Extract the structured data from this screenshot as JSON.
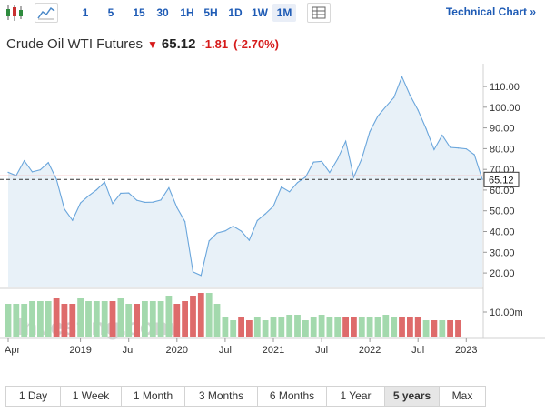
{
  "toolbar": {
    "candlestick_icon": "candlestick-icon",
    "area_icon": "area-chart-icon",
    "intervals": [
      "1",
      "5",
      "15",
      "30",
      "1H",
      "5H",
      "1D",
      "1W",
      "1M"
    ],
    "active_interval": "1M",
    "settings_icon": "table-icon",
    "technical_chart_label": "Technical Chart »"
  },
  "instrument": {
    "name": "Crude Oil WTI Futures",
    "direction_icon": "down-arrow-icon",
    "last": "65.12",
    "change": "-1.81",
    "change_pct": "(-2.70%)"
  },
  "colors": {
    "price_line": "#6aa6dc",
    "price_fill": "#e4eef7",
    "volume_up": "#a3d9ad",
    "volume_down": "#de6b6b",
    "negative": "#d61a1a",
    "link": "#1e5bb5"
  },
  "watermark": "Investing.com",
  "chart_data": {
    "type": "area",
    "title": "Crude Oil WTI Futures",
    "x": [
      "2018-04",
      "2018-05",
      "2018-06",
      "2018-07",
      "2018-08",
      "2018-09",
      "2018-10",
      "2018-11",
      "2018-12",
      "2019-01",
      "2019-02",
      "2019-03",
      "2019-04",
      "2019-05",
      "2019-06",
      "2019-07",
      "2019-08",
      "2019-09",
      "2019-10",
      "2019-11",
      "2019-12",
      "2020-01",
      "2020-02",
      "2020-03",
      "2020-04",
      "2020-05",
      "2020-06",
      "2020-07",
      "2020-08",
      "2020-09",
      "2020-10",
      "2020-11",
      "2020-12",
      "2021-01",
      "2021-02",
      "2021-03",
      "2021-04",
      "2021-05",
      "2021-06",
      "2021-07",
      "2021-08",
      "2021-09",
      "2021-10",
      "2021-11",
      "2021-12",
      "2022-01",
      "2022-02",
      "2022-03",
      "2022-04",
      "2022-05",
      "2022-06",
      "2022-07",
      "2022-08",
      "2022-09",
      "2022-10",
      "2022-11",
      "2022-12",
      "2023-01",
      "2023-02",
      "2023-03"
    ],
    "series": [
      {
        "values": [
          68.6,
          67.0,
          74.2,
          68.8,
          69.8,
          73.3,
          65.3,
          50.9,
          45.4,
          53.8,
          57.2,
          60.1,
          63.9,
          53.5,
          58.5,
          58.6,
          55.1,
          54.1,
          54.2,
          55.2,
          61.1,
          51.6,
          44.8,
          20.5,
          18.8,
          35.5,
          39.3,
          40.3,
          42.6,
          40.2,
          35.8,
          45.3,
          48.5,
          52.2,
          61.5,
          59.2,
          63.6,
          66.3,
          73.5,
          73.9,
          68.5,
          75.0,
          83.6,
          66.2,
          75.2,
          88.2,
          95.7,
          100.3,
          104.7,
          114.7,
          105.8,
          98.6,
          89.6,
          79.5,
          86.5,
          80.6,
          80.3,
          79.9,
          77.1,
          65.1
        ]
      }
    ],
    "volume": {
      "label": "10.00m",
      "values": [
        12,
        12,
        12,
        13,
        13,
        13,
        14,
        12,
        12,
        14,
        13,
        13,
        13,
        13,
        14,
        12,
        12,
        13,
        13,
        13,
        15,
        12,
        13,
        15,
        16,
        16,
        12,
        7,
        6,
        7,
        6,
        7,
        6,
        7,
        7,
        8,
        8,
        6,
        7,
        8,
        7,
        7,
        7,
        7,
        7,
        7,
        7,
        8,
        7,
        7,
        7,
        7,
        6,
        6,
        6,
        6,
        6,
        0,
        0,
        0
      ],
      "down": [
        false,
        false,
        false,
        false,
        false,
        false,
        true,
        true,
        true,
        false,
        false,
        false,
        false,
        true,
        false,
        false,
        true,
        false,
        false,
        false,
        false,
        true,
        true,
        true,
        true,
        false,
        false,
        false,
        false,
        true,
        true,
        false,
        false,
        false,
        false,
        false,
        false,
        false,
        false,
        false,
        false,
        false,
        true,
        true,
        false,
        false,
        false,
        false,
        false,
        true,
        true,
        true,
        false,
        true,
        false,
        true,
        true,
        false,
        false,
        true
      ]
    },
    "y_ticks": [
      "110.00",
      "100.00",
      "90.00",
      "80.00",
      "70.00",
      "60.00",
      "50.00",
      "40.00",
      "30.00",
      "20.00"
    ],
    "y_tick_values": [
      110,
      100,
      90,
      80,
      70,
      60,
      50,
      40,
      30,
      20
    ],
    "ylim": [
      13,
      121
    ],
    "x_ticks": [
      "Apr",
      "2019",
      "Jul",
      "2020",
      "Jul",
      "2021",
      "Jul",
      "2022",
      "Jul",
      "2023"
    ],
    "x_tick_index": [
      0,
      9,
      15,
      21,
      27,
      33,
      39,
      45,
      51,
      57
    ],
    "last_price": 65.12,
    "last_price_label": "65.12",
    "reference_price": 66.93,
    "grid": false
  },
  "periods": [
    "1 Day",
    "1 Week",
    "1 Month",
    "3 Months",
    "6 Months",
    "1 Year",
    "5 years",
    "Max"
  ],
  "selected_period": "5 years"
}
